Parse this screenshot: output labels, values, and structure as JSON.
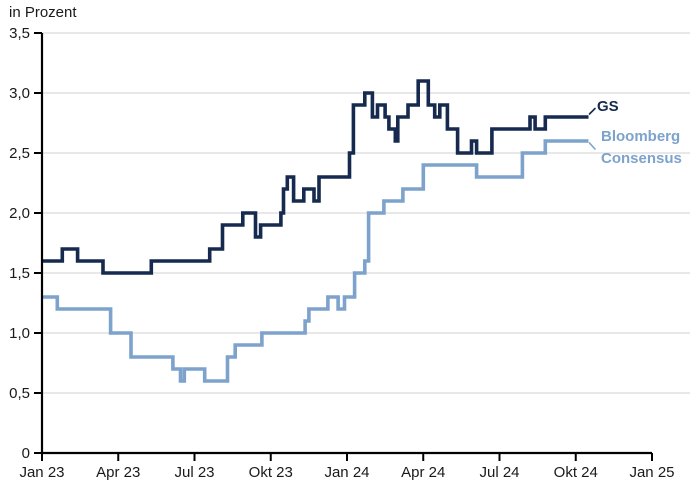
{
  "unit_label": "in Prozent",
  "colors": {
    "gs_line": "#152a4e",
    "consensus_line": "#7da2cc",
    "grid": "#d9d9d9",
    "axis": "#000000",
    "text": "#1a1a1a"
  },
  "chart_data": {
    "type": "line",
    "line_style": "step-after",
    "title": "",
    "ylabel": "in Prozent",
    "x_unit": "months since Jan 2023",
    "xlim_months": [
      0,
      24
    ],
    "ylim": [
      0,
      3.5
    ],
    "grid": "horizontal-on",
    "legend_position": "right of line ends",
    "x_ticks": [
      {
        "pos": 0,
        "label": "Jan 23"
      },
      {
        "pos": 3,
        "label": "Apr 23"
      },
      {
        "pos": 6,
        "label": "Jul 23"
      },
      {
        "pos": 9,
        "label": "Okt 23"
      },
      {
        "pos": 12,
        "label": "Jan 24"
      },
      {
        "pos": 15,
        "label": "Apr 24"
      },
      {
        "pos": 18,
        "label": "Jul 24"
      },
      {
        "pos": 21,
        "label": "Okt 24"
      },
      {
        "pos": 24,
        "label": "Jan 25"
      }
    ],
    "y_ticks": [
      {
        "pos": 0,
        "label": "0"
      },
      {
        "pos": 0.5,
        "label": "0,5"
      },
      {
        "pos": 1.0,
        "label": "1,0"
      },
      {
        "pos": 1.5,
        "label": "1,5"
      },
      {
        "pos": 2.0,
        "label": "2,0"
      },
      {
        "pos": 2.5,
        "label": "2,5"
      },
      {
        "pos": 3.0,
        "label": "3,0"
      },
      {
        "pos": 3.5,
        "label": "3,5"
      }
    ],
    "series": [
      {
        "name": "GS",
        "color": "#152a4e",
        "end_month": 21.5,
        "points": [
          [
            0,
            1.6
          ],
          [
            0.8,
            1.7
          ],
          [
            1.4,
            1.6
          ],
          [
            2.4,
            1.5
          ],
          [
            4.3,
            1.6
          ],
          [
            6.6,
            1.7
          ],
          [
            7.1,
            1.9
          ],
          [
            7.9,
            2.0
          ],
          [
            8.4,
            1.8
          ],
          [
            8.6,
            1.9
          ],
          [
            9.4,
            2.0
          ],
          [
            9.5,
            2.2
          ],
          [
            9.65,
            2.3
          ],
          [
            9.9,
            2.1
          ],
          [
            10.3,
            2.2
          ],
          [
            10.7,
            2.1
          ],
          [
            10.9,
            2.3
          ],
          [
            12.1,
            2.5
          ],
          [
            12.25,
            2.9
          ],
          [
            12.7,
            3.0
          ],
          [
            13.0,
            2.8
          ],
          [
            13.2,
            2.9
          ],
          [
            13.5,
            2.8
          ],
          [
            13.65,
            2.7
          ],
          [
            13.9,
            2.6
          ],
          [
            14.0,
            2.8
          ],
          [
            14.4,
            2.9
          ],
          [
            14.8,
            3.1
          ],
          [
            15.2,
            2.9
          ],
          [
            15.45,
            2.8
          ],
          [
            15.65,
            2.9
          ],
          [
            15.95,
            2.7
          ],
          [
            16.35,
            2.5
          ],
          [
            16.9,
            2.6
          ],
          [
            17.1,
            2.5
          ],
          [
            17.7,
            2.7
          ],
          [
            19.2,
            2.8
          ],
          [
            19.4,
            2.7
          ],
          [
            19.8,
            2.8
          ]
        ]
      },
      {
        "name": "Bloomberg Consensus",
        "color": "#7da2cc",
        "end_month": 21.5,
        "points": [
          [
            0,
            1.3
          ],
          [
            0.6,
            1.2
          ],
          [
            2.7,
            1.0
          ],
          [
            3.5,
            0.8
          ],
          [
            5.15,
            0.7
          ],
          [
            5.45,
            0.6
          ],
          [
            5.6,
            0.7
          ],
          [
            6.4,
            0.6
          ],
          [
            7.3,
            0.8
          ],
          [
            7.6,
            0.9
          ],
          [
            8.65,
            1.0
          ],
          [
            10.35,
            1.1
          ],
          [
            10.5,
            1.2
          ],
          [
            11.25,
            1.3
          ],
          [
            11.65,
            1.2
          ],
          [
            11.9,
            1.3
          ],
          [
            12.3,
            1.5
          ],
          [
            12.7,
            1.6
          ],
          [
            12.85,
            2.0
          ],
          [
            13.45,
            2.1
          ],
          [
            14.2,
            2.2
          ],
          [
            15.0,
            2.4
          ],
          [
            17.1,
            2.3
          ],
          [
            18.9,
            2.5
          ],
          [
            19.8,
            2.6
          ]
        ]
      }
    ],
    "legend": [
      {
        "label": "GS",
        "color": "#152a4e"
      },
      {
        "label": "Bloomberg Consensus",
        "color": "#7da2cc"
      }
    ]
  }
}
